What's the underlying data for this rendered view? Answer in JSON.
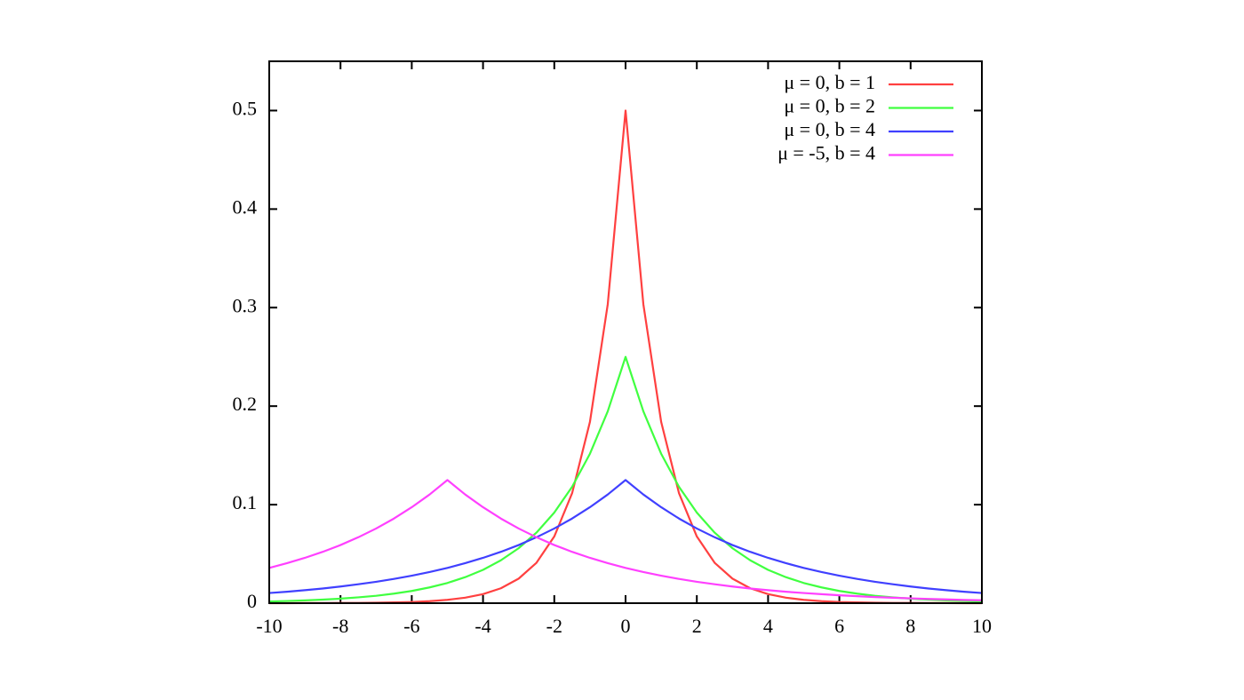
{
  "chart_data": {
    "type": "line",
    "x": [
      -10,
      -9.5,
      -9,
      -8.5,
      -8,
      -7.5,
      -7,
      -6.5,
      -6,
      -5.5,
      -5,
      -4.5,
      -4,
      -3.5,
      -3,
      -2.5,
      -2,
      -1.5,
      -1,
      -0.5,
      0,
      0.5,
      1,
      1.5,
      2,
      2.5,
      3,
      3.5,
      4,
      4.5,
      5,
      5.5,
      6,
      6.5,
      7,
      7.5,
      8,
      8.5,
      9,
      9.5,
      10
    ],
    "series": [
      {
        "name": "μ =  0, b = 1",
        "color": "#ff4040",
        "values": [
          0,
          0,
          0.0001,
          0.0001,
          0.0002,
          0.0003,
          0.0005,
          0.0008,
          0.0012,
          0.002,
          0.0034,
          0.0056,
          0.0092,
          0.0151,
          0.0249,
          0.041,
          0.0677,
          0.1116,
          0.1839,
          0.3033,
          0.5,
          0.3033,
          0.1839,
          0.1116,
          0.0677,
          0.041,
          0.0249,
          0.0151,
          0.0092,
          0.0056,
          0.0034,
          0.002,
          0.0012,
          0.0008,
          0.0005,
          0.0003,
          0.0002,
          0.0001,
          0.0001,
          0,
          0
        ]
      },
      {
        "name": "μ =  0, b = 2",
        "color": "#40ff40",
        "values": [
          0.0017,
          0.0022,
          0.0028,
          0.0036,
          0.0046,
          0.0059,
          0.0075,
          0.0097,
          0.0124,
          0.016,
          0.0205,
          0.0264,
          0.0338,
          0.0435,
          0.0558,
          0.0716,
          0.092,
          0.1181,
          0.1516,
          0.1947,
          0.25,
          0.1947,
          0.1516,
          0.1181,
          0.092,
          0.0716,
          0.0558,
          0.0435,
          0.0338,
          0.0264,
          0.0205,
          0.016,
          0.0124,
          0.0097,
          0.0075,
          0.0059,
          0.0046,
          0.0036,
          0.0028,
          0.0022,
          0.0017
        ]
      },
      {
        "name": "μ =  0, b = 4",
        "color": "#4040ff",
        "values": [
          0.0103,
          0.0116,
          0.0132,
          0.0149,
          0.0169,
          0.0192,
          0.0217,
          0.0246,
          0.0279,
          0.0316,
          0.0358,
          0.0406,
          0.046,
          0.0521,
          0.059,
          0.0669,
          0.0758,
          0.0859,
          0.0974,
          0.1103,
          0.125,
          0.1103,
          0.0974,
          0.0859,
          0.0758,
          0.0669,
          0.059,
          0.0521,
          0.046,
          0.0406,
          0.0358,
          0.0316,
          0.0279,
          0.0246,
          0.0217,
          0.0192,
          0.0169,
          0.0149,
          0.0132,
          0.0116,
          0.0103
        ]
      },
      {
        "name": "μ = -5, b = 4",
        "color": "#ff40ff",
        "values": [
          0.0358,
          0.0406,
          0.046,
          0.0521,
          0.059,
          0.0669,
          0.0758,
          0.0859,
          0.0974,
          0.1103,
          0.125,
          0.1103,
          0.0974,
          0.0859,
          0.0758,
          0.0669,
          0.059,
          0.0521,
          0.046,
          0.0406,
          0.0358,
          0.0316,
          0.0279,
          0.0246,
          0.0217,
          0.0192,
          0.0169,
          0.0149,
          0.0132,
          0.0116,
          0.0103,
          0.0091,
          0.008,
          0.0071,
          0.0062,
          0.0055,
          0.0049,
          0.0043,
          0.0038,
          0.0033,
          0.0029
        ]
      }
    ],
    "xlim": [
      -10,
      10
    ],
    "xticks": [
      -10,
      -8,
      -6,
      -4,
      -2,
      0,
      2,
      4,
      6,
      8,
      10
    ],
    "ylim": [
      0,
      0.55
    ],
    "yticks": [
      0,
      0.1,
      0.2,
      0.3,
      0.4,
      0.5
    ],
    "grid": false,
    "legend": "top-right"
  }
}
